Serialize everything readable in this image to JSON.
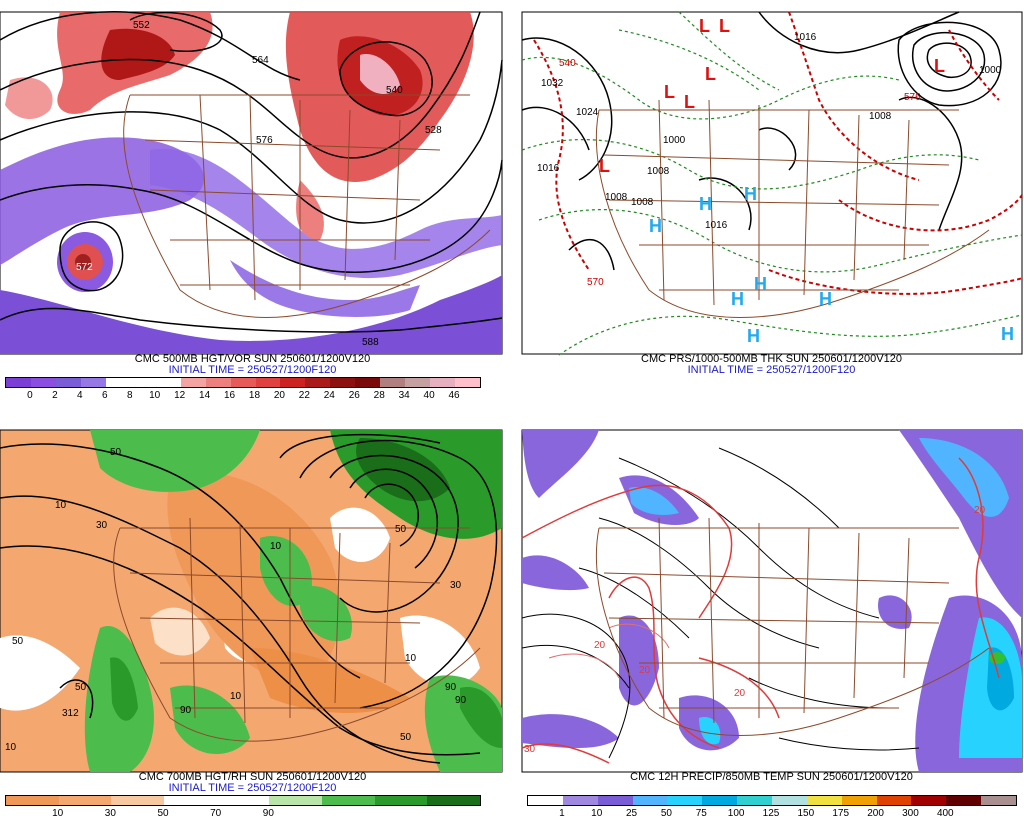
{
  "panels": [
    {
      "id": "vort500",
      "caption": "CMC 500MB HGT/VOR SUN 250601/1200V120",
      "init": "INITIAL TIME = 250527/1200F120",
      "contour_labels": [
        "552",
        "564",
        "576",
        "540",
        "528",
        "588",
        "572"
      ],
      "colorbar": {
        "colors": [
          "#7b3fd6",
          "#8a4fe0",
          "#7a5cd6",
          "#9577e6",
          "#ffffff",
          "#ffffff",
          "#ffffff",
          "#f4a3a3",
          "#ee7f7f",
          "#e65a5a",
          "#e04040",
          "#cc2222",
          "#aa1a1a",
          "#8c1010",
          "#7a0a0a",
          "#b08080",
          "#c4a0a0",
          "#e6b0c0",
          "#ffc0cc"
        ],
        "ticks": [
          "0",
          "2",
          "4",
          "6",
          "8",
          "10",
          "12",
          "14",
          "16",
          "18",
          "20",
          "22",
          "24",
          "26",
          "28",
          "34",
          "40",
          "46"
        ]
      }
    },
    {
      "id": "pmsl",
      "caption": "CMC PRS/1000-500MB THK SUN 250601/1200V120",
      "init": "INITIAL TIME = 250527/1200F120",
      "contour_labels": [
        "1032",
        "1024",
        "1016",
        "1008",
        "1008",
        "1008",
        "1016",
        "1016",
        "1000",
        "1008",
        "1000",
        "540",
        "570",
        "576"
      ],
      "lows": [
        "L",
        "L",
        "L",
        "L",
        "L",
        "L",
        "L"
      ],
      "highs": [
        "H",
        "H",
        "H",
        "H",
        "H",
        "H",
        "H",
        "H"
      ]
    },
    {
      "id": "rh700",
      "caption": "CMC 700MB HGT/RH SUN 250601/1200V120",
      "init": "INITIAL TIME = 250527/1200F120",
      "contour_labels": [
        "50",
        "10",
        "30",
        "50",
        "10",
        "90",
        "50",
        "10",
        "312",
        "10",
        "50",
        "90",
        "50",
        "90",
        "10",
        "30"
      ],
      "colorbar": {
        "colors": [
          "#f09858",
          "#f4a870",
          "#f8c8a0",
          "#ffffff",
          "#ffffff",
          "#b8e6a8",
          "#4cbc4c",
          "#2a9a2a",
          "#1a6e1a"
        ],
        "ticks": [
          "10",
          "30",
          "50",
          "70",
          "90"
        ]
      }
    },
    {
      "id": "precip",
      "caption": "CMC 12H PRECIP/850MB TEMP SUN 250601/1200V120",
      "init": "",
      "contour_labels": [
        "20",
        "20",
        "20",
        "30",
        "20"
      ],
      "colorbar": {
        "colors": [
          "#ffffff",
          "#a088e0",
          "#7a5cd6",
          "#50b4ff",
          "#28d2ff",
          "#00aae0",
          "#30d0d0",
          "#b0e0e0",
          "#f0e040",
          "#f0a000",
          "#e04000",
          "#a00000",
          "#600000",
          "#a89090"
        ],
        "ticks": [
          "1",
          "10",
          "25",
          "50",
          "75",
          "100",
          "125",
          "150",
          "175",
          "200",
          "300",
          "400"
        ]
      }
    }
  ]
}
